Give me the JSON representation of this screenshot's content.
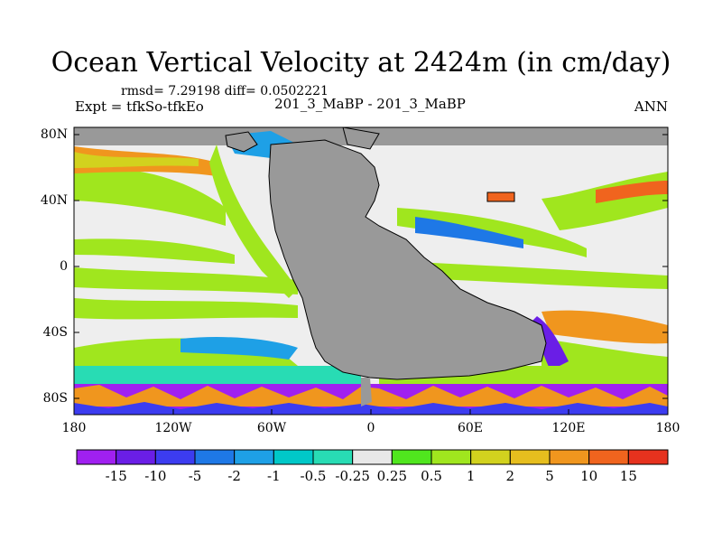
{
  "title": "Ocean Vertical Velocity at 2424m (in cm/day)",
  "stats": "rmsd= 7.29198 diff= 0.0502221",
  "expt": "Expt = tfkSo-tfkEo",
  "case_label": "201_3_MaBP - 201_3_MaBP",
  "season": "ANN",
  "lat_labels": [
    "80N",
    "40N",
    "0",
    "40S",
    "80S"
  ],
  "lon_labels": [
    "180",
    "120W",
    "60W",
    "0",
    "60E",
    "120E",
    "180"
  ],
  "colorbar": {
    "labels": [
      "-15",
      "-10",
      "-5",
      "-2",
      "-1",
      "-0.5",
      "-0.25",
      "0.25",
      "0.5",
      "1",
      "2",
      "5",
      "10",
      "15"
    ],
    "colors": [
      "#a020f0",
      "#6a1ee6",
      "#3c3cf0",
      "#1e78e6",
      "#1ea0e6",
      "#00c8c8",
      "#28dcb4",
      "#e8e8e8",
      "#50e61e",
      "#a0e61e",
      "#d2d21e",
      "#e6be1e",
      "#f0961e",
      "#f0641e",
      "#e6321e"
    ]
  },
  "map_colors": {
    "land": "#999999",
    "neutral": "#eeeeee"
  }
}
